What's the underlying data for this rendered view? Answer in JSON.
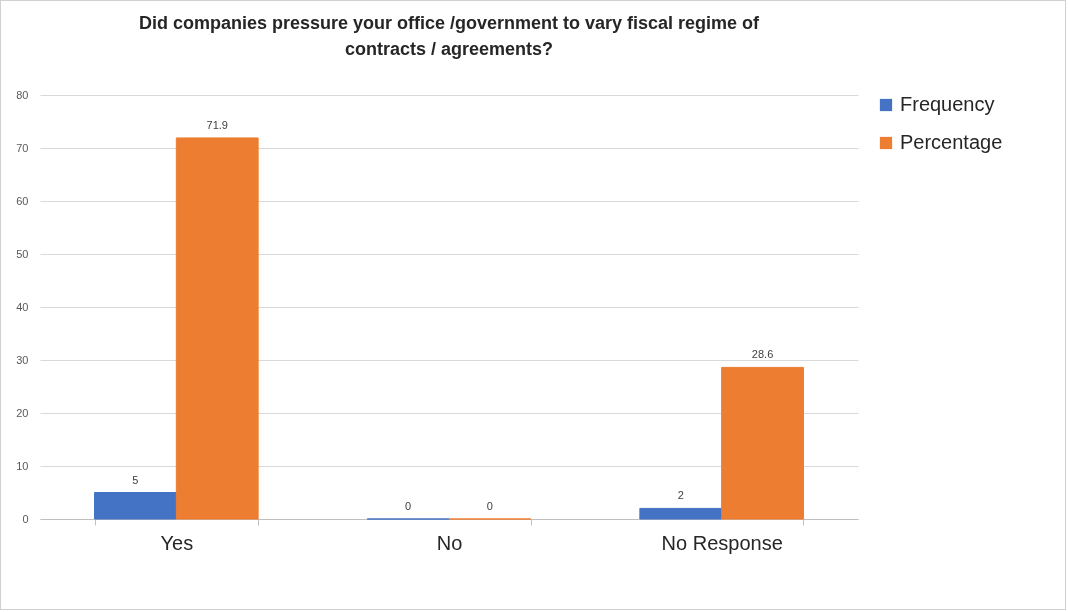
{
  "chart_data": {
    "type": "bar",
    "title": "Did companies pressure your office /government to vary fiscal regime of contracts / agreements?",
    "categories": [
      "Yes",
      "No",
      "No Response"
    ],
    "series": [
      {
        "name": "Frequency",
        "color": "#4472c4",
        "values": [
          5,
          0,
          2
        ]
      },
      {
        "name": "Percentage",
        "color": "#ed7d31",
        "values": [
          71.9,
          0,
          28.6
        ]
      }
    ],
    "ylim": [
      0,
      80
    ],
    "yticks": [
      0,
      10,
      20,
      30,
      40,
      50,
      60,
      70,
      80
    ],
    "grid": "y",
    "legend": "right",
    "data_labels": true
  }
}
